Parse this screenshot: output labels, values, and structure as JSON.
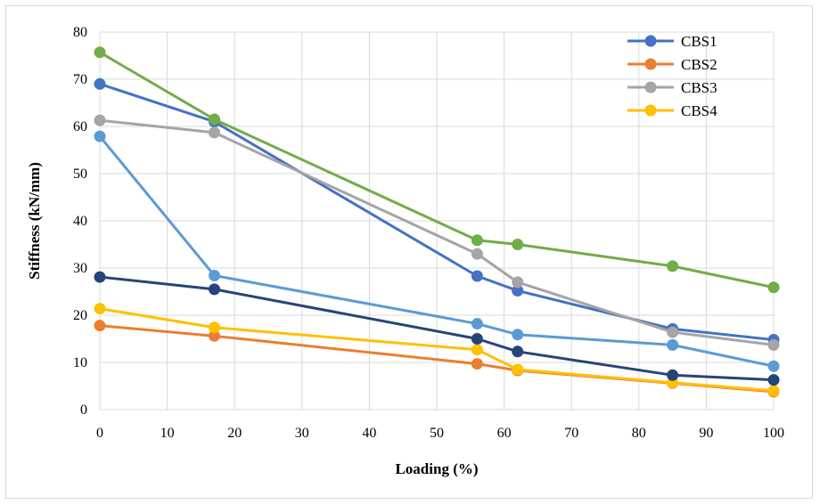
{
  "chart_data": {
    "type": "line",
    "title": "",
    "xlabel": "Loading (%)",
    "ylabel": "Stiffness (kN/mm)",
    "xlim": [
      0,
      100
    ],
    "ylim": [
      0,
      80
    ],
    "x_ticks": [
      0,
      10,
      20,
      30,
      40,
      50,
      60,
      70,
      80,
      90,
      100
    ],
    "y_ticks": [
      0,
      10,
      20,
      30,
      40,
      50,
      60,
      70,
      80
    ],
    "grid": true,
    "legend_position": "top-right",
    "series": [
      {
        "name": "CBS1",
        "color": "#4472C4",
        "legend": true,
        "x": [
          0,
          17,
          56,
          62,
          85,
          100
        ],
        "y": [
          69,
          61,
          28.3,
          25.2,
          17.1,
          14.8
        ]
      },
      {
        "name": "CBS2",
        "color": "#ED7D31",
        "legend": true,
        "x": [
          0,
          17,
          56,
          62,
          85,
          100
        ],
        "y": [
          17.8,
          15.6,
          9.7,
          8.3,
          5.6,
          3.8
        ]
      },
      {
        "name": "CBS3",
        "color": "#A5A5A5",
        "legend": true,
        "x": [
          0,
          17,
          56,
          62,
          85,
          100
        ],
        "y": [
          61.3,
          58.7,
          33,
          27,
          16.4,
          13.7
        ]
      },
      {
        "name": "CBS4",
        "color": "#FFC000",
        "legend": true,
        "x": [
          0,
          17,
          56,
          62,
          85,
          100
        ],
        "y": [
          21.4,
          17.4,
          12.7,
          8.5,
          5.7,
          4
        ]
      },
      {
        "name": "",
        "color": "#5B9BD5",
        "legend": false,
        "x": [
          0,
          17,
          56,
          62,
          85,
          100
        ],
        "y": [
          57.9,
          28.4,
          18.2,
          15.9,
          13.7,
          9.2
        ]
      },
      {
        "name": "",
        "color": "#264478",
        "legend": false,
        "x": [
          0,
          17,
          56,
          62,
          85,
          100
        ],
        "y": [
          28.1,
          25.5,
          15,
          12.3,
          7.3,
          6.3
        ]
      },
      {
        "name": "",
        "color": "#70AD47",
        "legend": false,
        "x": [
          0,
          17,
          56,
          62,
          85,
          100
        ],
        "y": [
          75.7,
          61.5,
          35.9,
          35,
          30.4,
          25.9
        ]
      }
    ]
  }
}
